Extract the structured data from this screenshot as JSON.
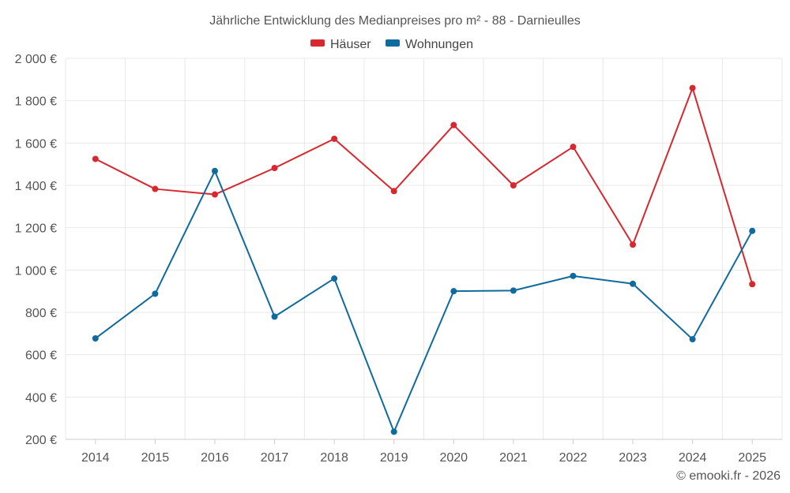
{
  "chart_data": {
    "type": "line",
    "title": "Jährliche Entwicklung des Medianpreises pro m² - 88 - Darnieulles",
    "categories": [
      "2014",
      "2015",
      "2016",
      "2017",
      "2018",
      "2019",
      "2020",
      "2021",
      "2022",
      "2023",
      "2024",
      "2025"
    ],
    "series": [
      {
        "name": "Häuser",
        "color": "#d7282f",
        "values": [
          1525,
          1383,
          1357,
          1482,
          1620,
          1373,
          1685,
          1400,
          1582,
          1120,
          1860,
          933
        ]
      },
      {
        "name": "Wohnungen",
        "color": "#0f6a9e",
        "values": [
          677,
          888,
          1468,
          780,
          960,
          236,
          900,
          903,
          972,
          935,
          673,
          1185
        ]
      }
    ],
    "y_ticks": [
      200,
      400,
      600,
      800,
      1000,
      1200,
      1400,
      1600,
      1800,
      2000
    ],
    "y_tick_labels": [
      "200 €",
      "400 €",
      "600 €",
      "800 €",
      "1 000 €",
      "1 200 €",
      "1 400 €",
      "1 600 €",
      "1 800 €",
      "2 000 €"
    ],
    "ylim": [
      200,
      2000
    ],
    "xlabel": "",
    "ylabel": "",
    "grid": true,
    "legend_position": "top-center"
  },
  "credit": "© emooki.fr - 2026"
}
